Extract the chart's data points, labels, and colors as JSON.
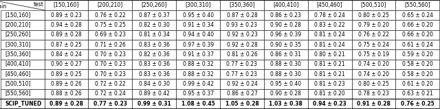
{
  "col_headers": [
    "[150,160]",
    "[200,210]",
    "[250,260]",
    "[300,310]",
    "[350,360]",
    "[400,410]",
    "[450,460]",
    "[500,510]",
    "[550,560]"
  ],
  "row_headers": [
    "[150,160]",
    "[200,210]",
    "[250,260]",
    "[300,310]",
    "[350,360]",
    "[400,410]",
    "[450,460]",
    "[500,510]",
    "[550,560]",
    "SCIP_TUNED"
  ],
  "cells": [
    [
      "0.89 ± 0.23",
      "0.76 ± 0.22",
      "0.87 ± 0.37",
      "0.95 ± 0.40",
      "0.87 ± 0.28",
      "0.86 ± 0.23",
      "0.78 ± 0.24",
      "0.80 ± 0.25",
      "0.65 ± 0.24"
    ],
    [
      "0.94 ± 0.28",
      "0.75 ± 0.25",
      "0.82 ± 0.30",
      "0.91 ± 0.34",
      "0.93 ± 0.23",
      "0.90 ± 0.28",
      "0.83 ± 0.22",
      "0.79 ± 0.20",
      "0.66 ± 0.20"
    ],
    [
      "0.89 ± 0.28",
      "0.69 ± 0.23",
      "0.81 ± 0.34",
      "0.94 ± 0.40",
      "0.92 ± 0.23",
      "0.96 ± 0.39",
      "0.81 ± 0.24",
      "0.76 ± 0.22",
      "0.66 ± 0.20"
    ],
    [
      "0.87 ± 0.25",
      "0.71 ± 0.26",
      "0.83 ± 0.36",
      "0.97 ± 0.39",
      "0.92 ± 0.28",
      "0.90 ± 0.35",
      "0.81 ± 0.24",
      "0.75 ± 0.24",
      "0.61 ± 0.24"
    ],
    [
      "0.84 ± 0.24",
      "0.70 ± 0.23",
      "0.82 ± 0.36",
      "0.91 ± 0.37",
      "0.81 ± 0.26",
      "0.86 ± 0.31",
      "0.80 ± 0.21",
      "0.75 ± 0.19",
      "0.59 ± 0.20"
    ],
    [
      "0.90 ± 0.27",
      "0.70 ± 0.23",
      "0.83 ± 0.36",
      "0.88 ± 0.32",
      "0.77 ± 0.23",
      "0.88 ± 0.30",
      "0.81 ± 0.21",
      "0.74 ± 0.20",
      "0.58 ± 0.20"
    ],
    [
      "0.89 ± 0.25",
      "0.70 ± 0.23",
      "0.83 ± 0.36",
      "0.88 ± 0.32",
      "0.77 ± 0.23",
      "0.88 ± 0.30",
      "0.81 ± 0.21",
      "0.74 ± 0.20",
      "0.58 ± 0.20"
    ],
    [
      "0.89 ± 0.26",
      "0.72 ± 0.22",
      "0.84 ± 0.30",
      "0.99 ± 0.42",
      "0.92 ± 0.24",
      "0.95 ± 0.40",
      "0.81 ± 0.23",
      "0.80 ± 0.25",
      "0.61 ± 0.20"
    ],
    [
      "0.88 ± 0.26",
      "0.72 ± 0.24",
      "0.89 ± 0.42",
      "0.95 ± 0.37",
      "0.86 ± 0.27",
      "0.90 ± 0.28",
      "0.81 ± 0.20",
      "0.78 ± 0.23",
      "0.63 ± 0.21"
    ],
    [
      "0.89 ± 0.28",
      "0.77 ± 0.23",
      "0.99 ± 0.31",
      "1.08 ± 0.45",
      "1.05 ± 0.28",
      "1.03 ± 0.38",
      "0.94 ± 0.23",
      "0.91 ± 0.28",
      "0.76 ± 0.25"
    ]
  ],
  "top_label": "test",
  "left_label": "train",
  "fontsize": 5.5,
  "fig_width": 6.4,
  "fig_height": 1.59,
  "dpi": 100
}
